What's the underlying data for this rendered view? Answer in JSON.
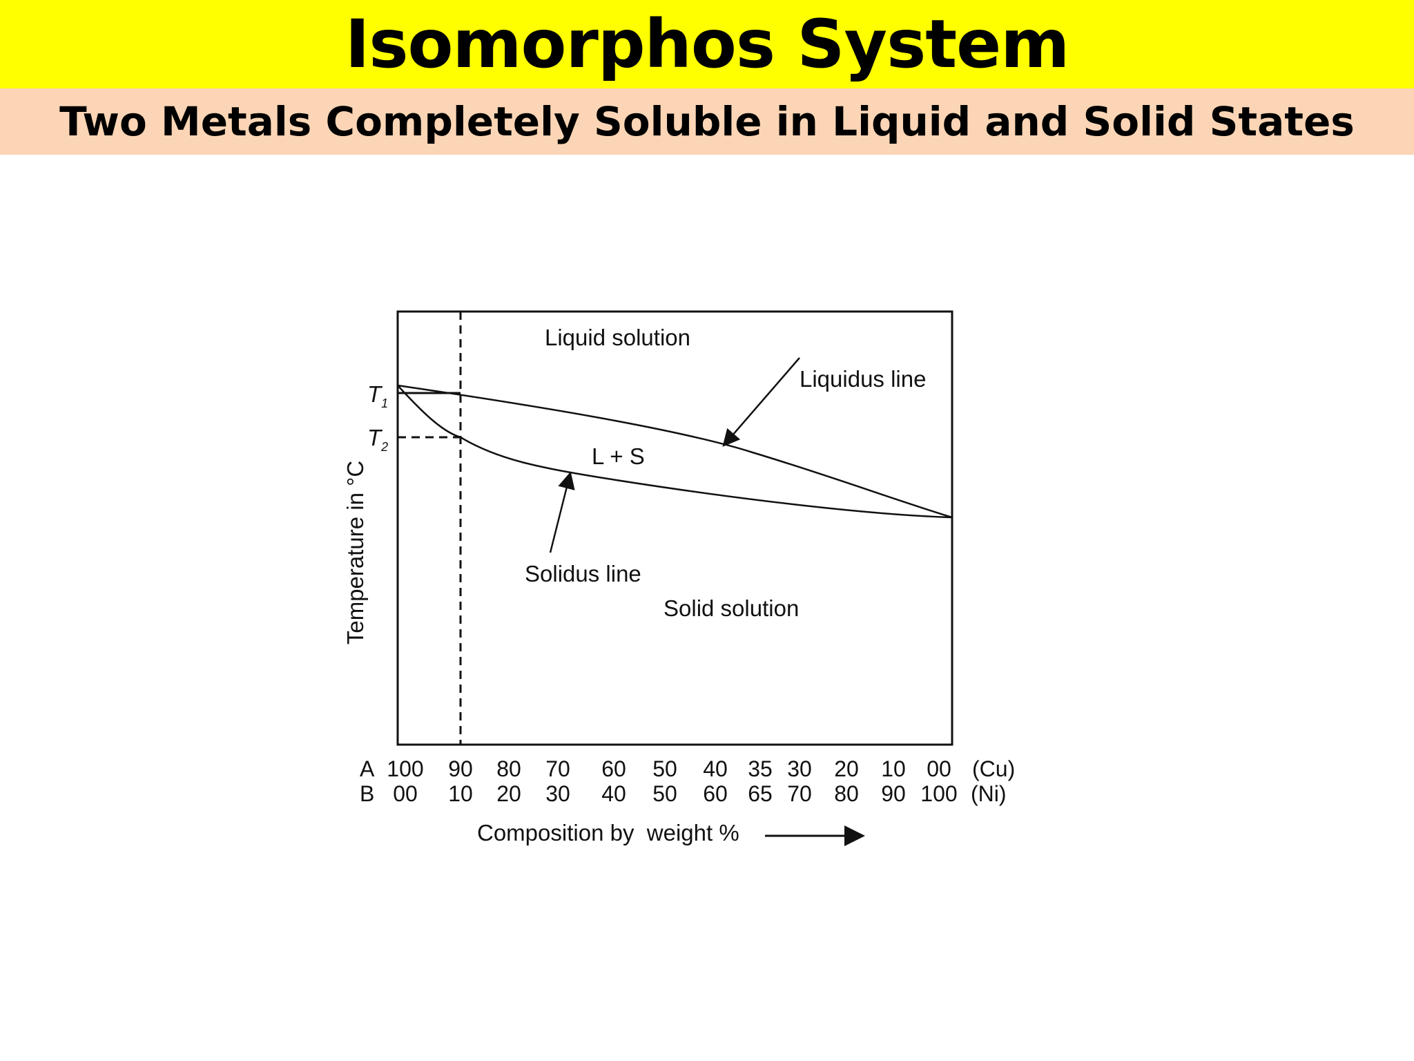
{
  "slide": {
    "title": "Isomorphos System",
    "subtitle": "Two Metals Completely Soluble in Liquid and Solid States"
  },
  "diagram": {
    "regions": {
      "liquid": "Liquid solution",
      "two_phase": "L + S",
      "solid": "Solid solution"
    },
    "lines": {
      "liquidus": "Liquidus line",
      "solidus": "Solidus line"
    },
    "y_axis_label": "Temperature in °C",
    "temperature_marks": {
      "t1": "T",
      "t1_sub": "1",
      "t2": "T",
      "t2_sub": "2"
    },
    "row_a": {
      "label": "A",
      "metal": "(Cu)",
      "values": [
        "100",
        "90",
        "80",
        "70",
        "60",
        "50",
        "40",
        "35",
        "30",
        "20",
        "10",
        "00"
      ]
    },
    "row_b": {
      "label": "B",
      "metal": "(Ni)",
      "values": [
        "00",
        "10",
        "20",
        "30",
        "40",
        "50",
        "60",
        "65",
        "70",
        "80",
        "90",
        "100"
      ]
    },
    "x_axis_label": "Composition by  weight %",
    "colors": {
      "title_band": "#ffff00",
      "subtitle_band": "#fbd5b5"
    }
  }
}
